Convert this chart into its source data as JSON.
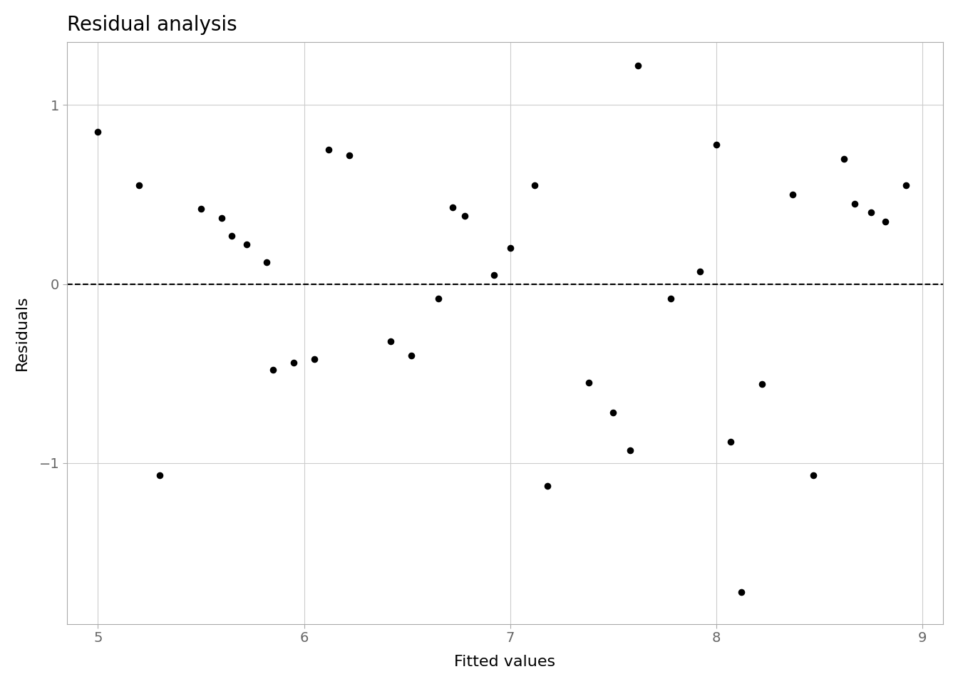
{
  "title": "Residual analysis",
  "xlabel": "Fitted values",
  "ylabel": "Residuals",
  "xlim": [
    4.85,
    9.1
  ],
  "ylim": [
    -1.9,
    1.35
  ],
  "xticks": [
    5,
    6,
    7,
    8,
    9
  ],
  "yticks": [
    -1,
    0,
    1
  ],
  "background_color": "#ffffff",
  "panel_background": "#ffffff",
  "grid_color": "#cccccc",
  "spine_color": "#aaaaaa",
  "points": [
    [
      5.0,
      0.85
    ],
    [
      5.2,
      0.55
    ],
    [
      5.3,
      -1.07
    ],
    [
      5.5,
      0.42
    ],
    [
      5.6,
      0.37
    ],
    [
      5.65,
      0.27
    ],
    [
      5.72,
      0.22
    ],
    [
      5.82,
      0.12
    ],
    [
      5.85,
      -0.48
    ],
    [
      5.95,
      -0.44
    ],
    [
      6.05,
      -0.42
    ],
    [
      6.12,
      0.75
    ],
    [
      6.22,
      0.72
    ],
    [
      6.42,
      -0.32
    ],
    [
      6.52,
      -0.4
    ],
    [
      6.65,
      -0.08
    ],
    [
      6.72,
      0.43
    ],
    [
      6.78,
      0.38
    ],
    [
      6.92,
      0.05
    ],
    [
      7.0,
      0.2
    ],
    [
      7.12,
      0.55
    ],
    [
      7.18,
      -1.13
    ],
    [
      7.38,
      -0.55
    ],
    [
      7.5,
      -0.72
    ],
    [
      7.58,
      -0.93
    ],
    [
      7.62,
      1.22
    ],
    [
      7.78,
      -0.08
    ],
    [
      7.92,
      0.07
    ],
    [
      8.0,
      0.78
    ],
    [
      8.07,
      -0.88
    ],
    [
      8.12,
      -1.72
    ],
    [
      8.22,
      -0.56
    ],
    [
      8.37,
      0.5
    ],
    [
      8.47,
      -1.07
    ],
    [
      8.62,
      0.7
    ],
    [
      8.67,
      0.45
    ],
    [
      8.75,
      0.4
    ],
    [
      8.82,
      0.35
    ],
    [
      8.92,
      0.55
    ]
  ],
  "point_color": "#000000",
  "point_size": 35,
  "dashed_line_y": 0,
  "title_fontsize": 20,
  "label_fontsize": 16,
  "tick_fontsize": 14,
  "tick_color": "#666666"
}
